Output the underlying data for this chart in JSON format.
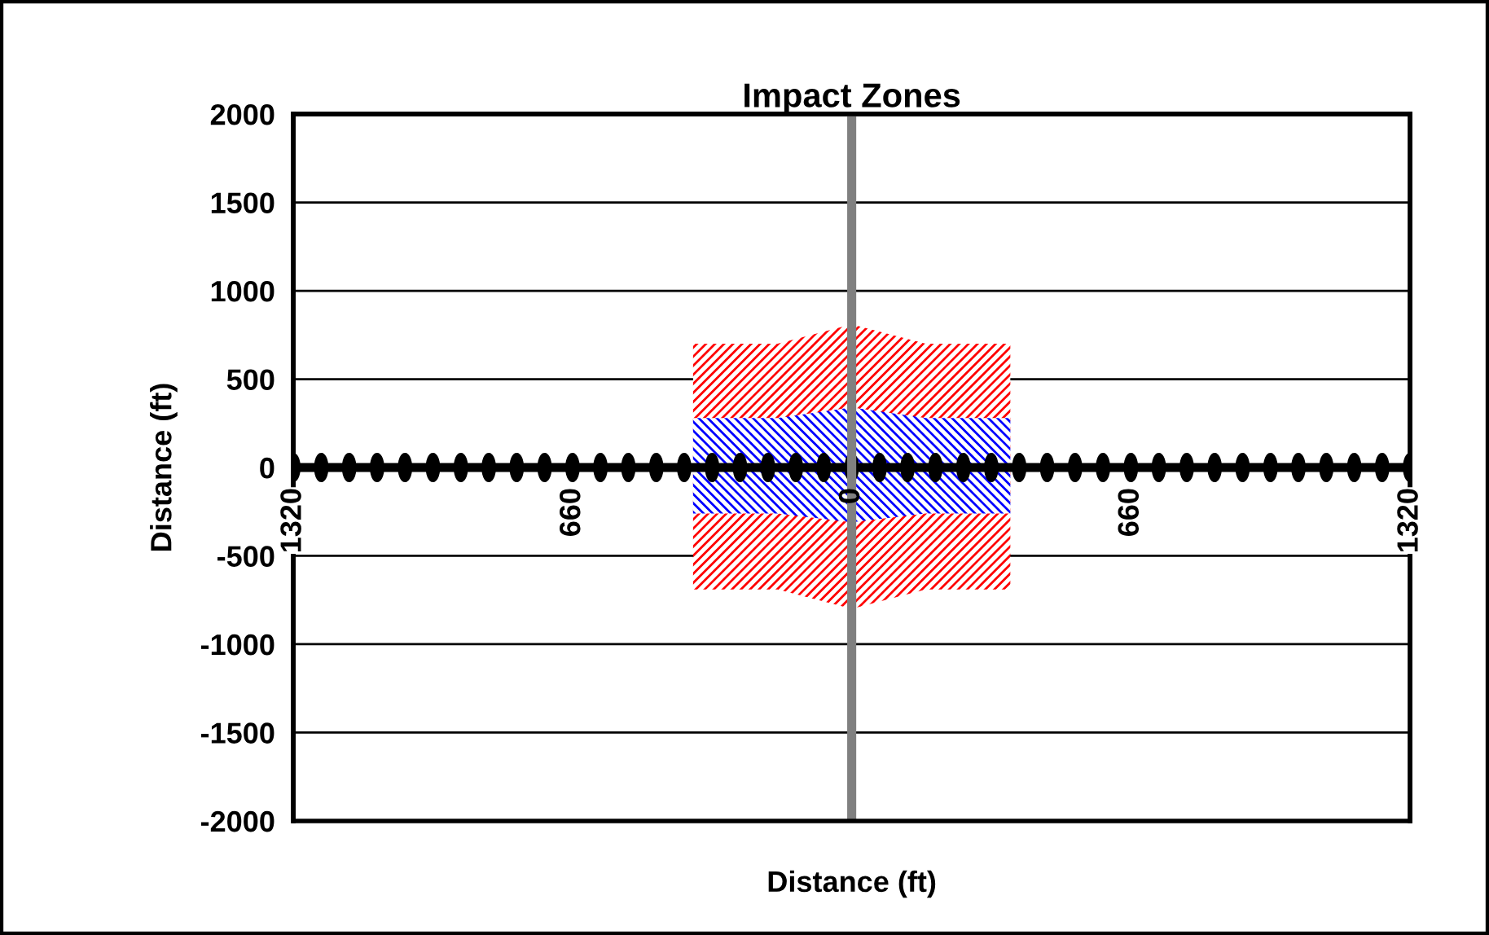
{
  "chart_data": {
    "type": "area",
    "title": "Impact Zones",
    "xlabel": "Distance (ft)",
    "ylabel": "Distance (ft)",
    "xlim": [
      -1320,
      1320
    ],
    "ylim": [
      -2000,
      2000
    ],
    "xticks": [
      {
        "value": -1320,
        "label": "1320"
      },
      {
        "value": -660,
        "label": "660"
      },
      0,
      660,
      1320
    ],
    "yticks": [
      -2000,
      -1500,
      -1000,
      -500,
      0,
      500,
      1000,
      1500,
      2000
    ],
    "grid": "y",
    "legend": false,
    "series": [
      {
        "color": "#ff0000",
        "x": [
          -375,
          -175,
          0,
          175,
          375
        ],
        "values": [
          700,
          700,
          810,
          700,
          700
        ]
      },
      {
        "color": "#ff0000",
        "x": [
          -375,
          -175,
          0,
          175,
          375
        ],
        "values": [
          -690,
          -690,
          -800,
          -690,
          -690
        ]
      },
      {
        "color": "#0000ff",
        "x": [
          -375,
          -175,
          0,
          175,
          375
        ],
        "values": [
          280,
          280,
          340,
          280,
          280
        ]
      },
      {
        "color": "#0000ff",
        "x": [
          -375,
          -175,
          0,
          175,
          375
        ],
        "values": [
          -260,
          -260,
          -310,
          -260,
          -260
        ]
      },
      {
        "type": "line",
        "color": "#000000",
        "marker": "circle",
        "x": [
          -1320,
          -1254,
          -1188,
          -1122,
          -1056,
          -990,
          -924,
          -858,
          -792,
          -726,
          -660,
          -594,
          -528,
          -462,
          -396,
          -330,
          -264,
          -198,
          -132,
          -66,
          0,
          66,
          132,
          198,
          264,
          330,
          396,
          462,
          528,
          594,
          660,
          726,
          792,
          858,
          924,
          990,
          1056,
          1122,
          1188,
          1254,
          1320
        ],
        "values": [
          0,
          0,
          0,
          0,
          0,
          0,
          0,
          0,
          0,
          0,
          0,
          0,
          0,
          0,
          0,
          0,
          0,
          0,
          0,
          0,
          0,
          0,
          0,
          0,
          0,
          0,
          0,
          0,
          0,
          0,
          0,
          0,
          0,
          0,
          0,
          0,
          0,
          0,
          0,
          0,
          0
        ]
      }
    ],
    "ref_lines": [
      {
        "axis": "x",
        "value": 0,
        "color": "#808080"
      }
    ]
  }
}
